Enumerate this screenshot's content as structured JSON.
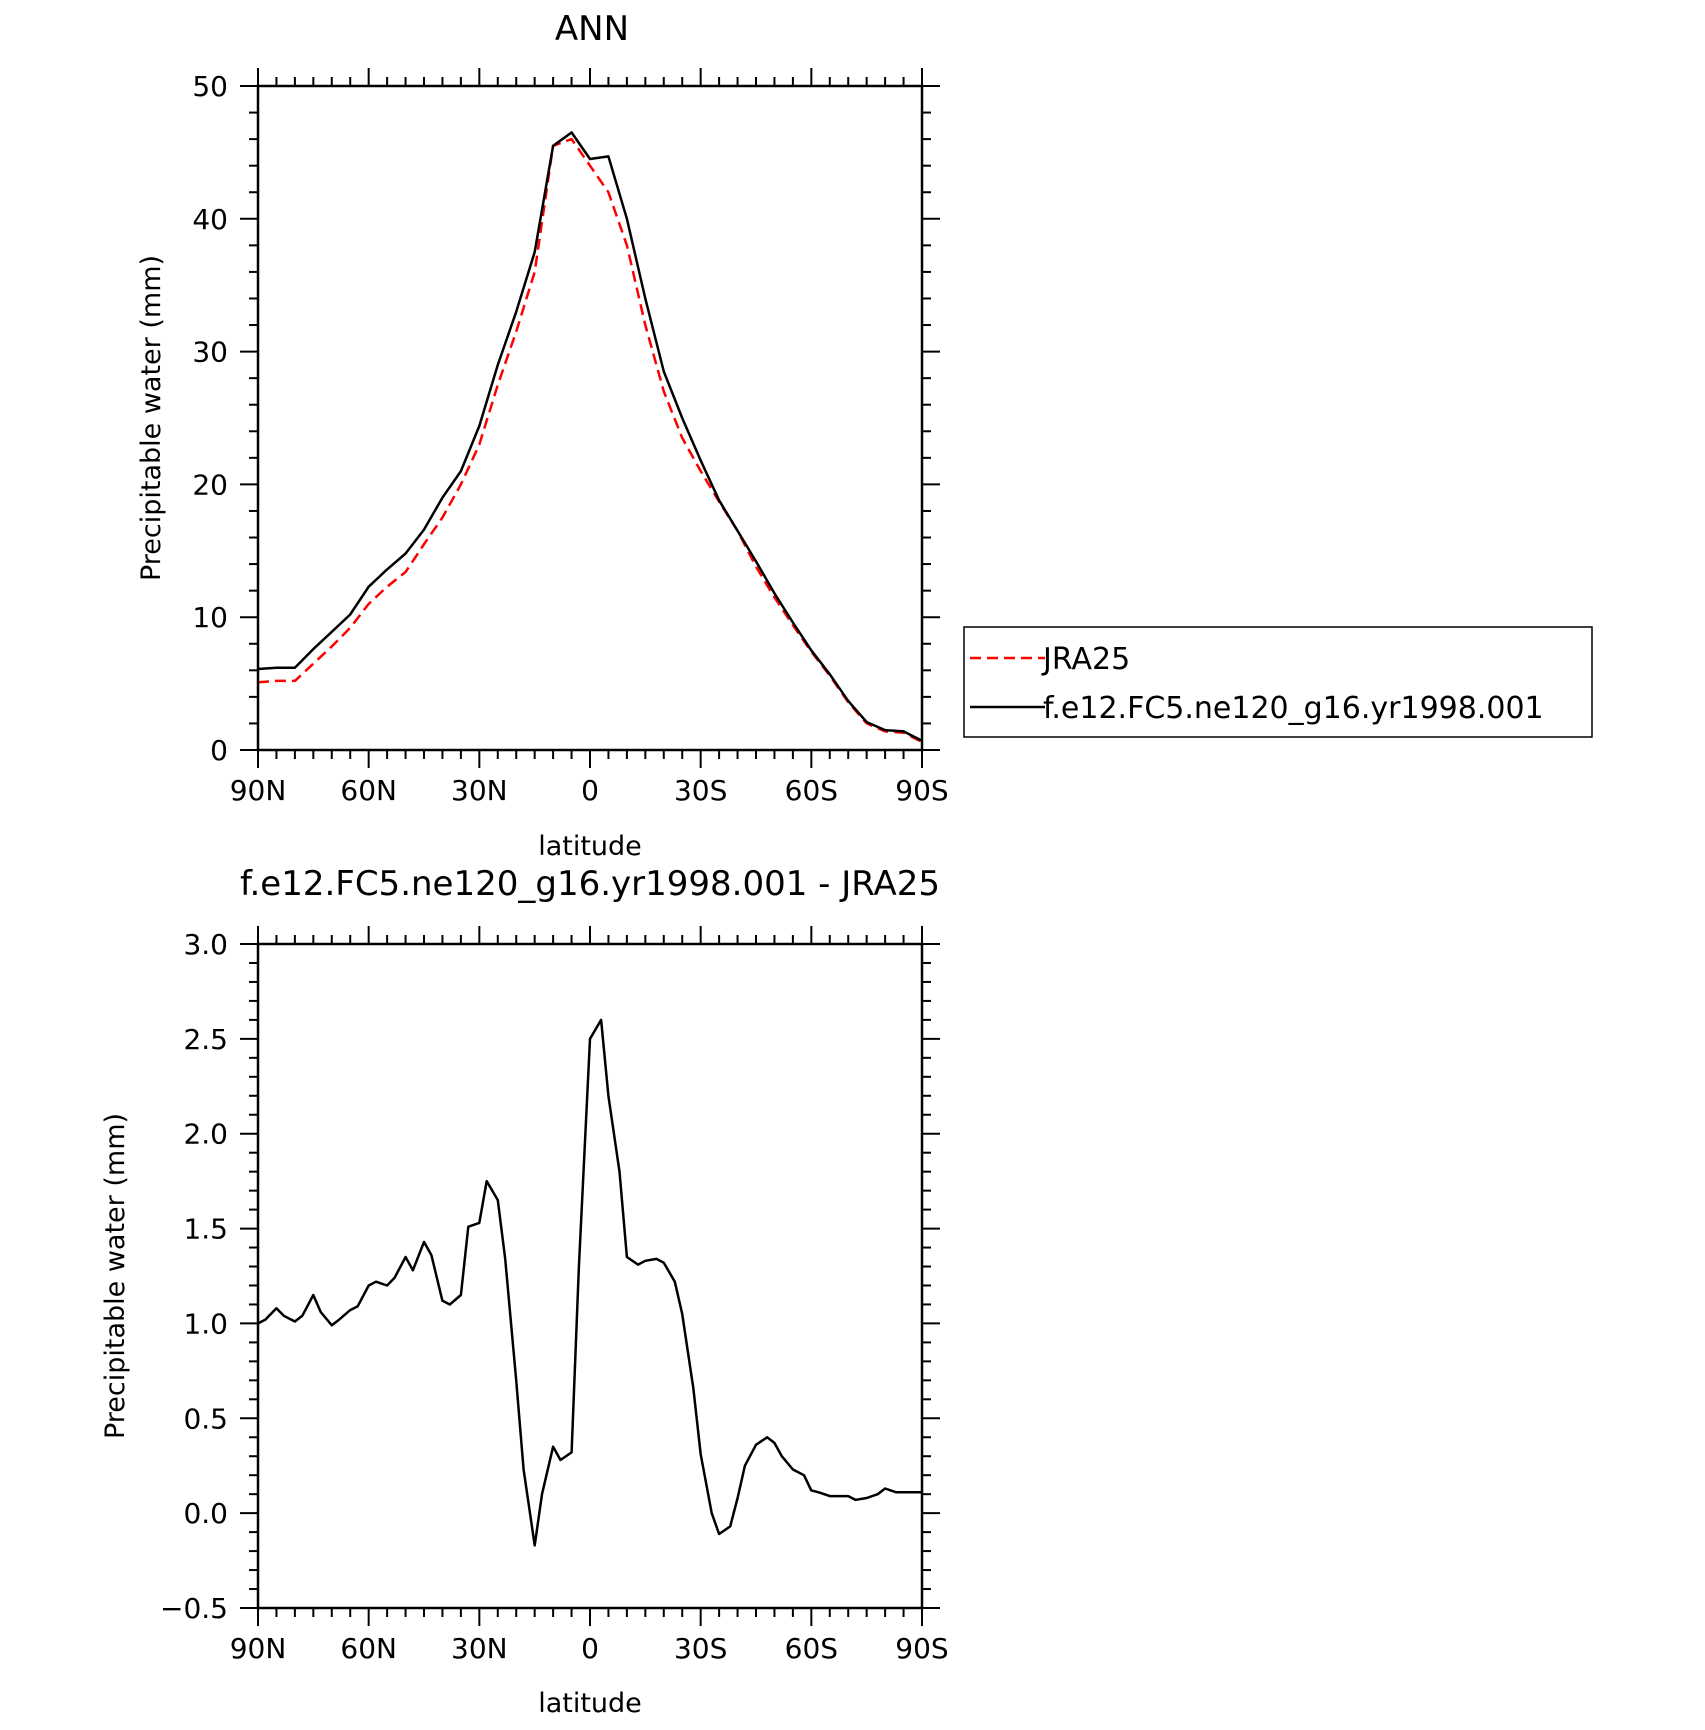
{
  "chart_data": [
    {
      "type": "line",
      "title": "ANN",
      "xlabel": "latitude",
      "ylabel": "Precipitable water (mm)",
      "xlim": [
        90,
        -90
      ],
      "ylim": [
        0,
        50
      ],
      "x_ticks": [
        90,
        60,
        30,
        0,
        -30,
        -60,
        -90
      ],
      "x_tick_labels": [
        "90N",
        "60N",
        "30N",
        "0",
        "30S",
        "60S",
        "90S"
      ],
      "y_ticks": [
        0,
        10,
        20,
        30,
        40,
        50
      ],
      "y_tick_labels": [
        "0",
        "10",
        "20",
        "30",
        "40",
        "50"
      ],
      "grid": false,
      "legend_position": "right",
      "series": [
        {
          "name": "JRA25",
          "color": "#ff0000",
          "style": "dashed",
          "x": [
            90,
            85,
            80,
            75,
            70,
            65,
            60,
            55,
            50,
            45,
            40,
            35,
            30,
            25,
            20,
            15,
            10,
            5,
            0,
            -5,
            -10,
            -15,
            -20,
            -25,
            -30,
            -35,
            -40,
            -45,
            -50,
            -55,
            -60,
            -65,
            -70,
            -75,
            -80,
            -85,
            -90
          ],
          "y": [
            5.1,
            5.2,
            5.2,
            6.5,
            7.8,
            9.2,
            11.0,
            12.3,
            13.4,
            15.5,
            17.5,
            20.0,
            23.0,
            27.5,
            31.5,
            36.0,
            45.5,
            46.0,
            44.0,
            42.0,
            38.0,
            32.0,
            27.0,
            23.5,
            21.0,
            18.7,
            16.5,
            13.8,
            11.5,
            9.4,
            7.4,
            5.6,
            3.6,
            2.0,
            1.4,
            1.3,
            0.6
          ]
        },
        {
          "name": "f.e12.FC5.ne120_g16.yr1998.001",
          "color": "#000000",
          "style": "solid",
          "x": [
            90,
            85,
            80,
            75,
            70,
            65,
            60,
            55,
            50,
            45,
            40,
            35,
            30,
            25,
            20,
            15,
            10,
            5,
            0,
            -5,
            -10,
            -15,
            -20,
            -25,
            -30,
            -35,
            -40,
            -45,
            -50,
            -55,
            -60,
            -65,
            -70,
            -75,
            -80,
            -85,
            -90
          ],
          "y": [
            6.1,
            6.2,
            6.2,
            7.6,
            8.9,
            10.2,
            12.3,
            13.6,
            14.8,
            16.6,
            19.0,
            21.0,
            24.4,
            29.0,
            33.0,
            37.5,
            45.5,
            46.5,
            44.5,
            44.7,
            40.0,
            34.0,
            28.5,
            25.0,
            21.8,
            18.8,
            16.5,
            14.2,
            11.8,
            9.6,
            7.5,
            5.7,
            3.7,
            2.1,
            1.5,
            1.4,
            0.7
          ]
        }
      ]
    },
    {
      "type": "line",
      "title": "f.e12.FC5.ne120_g16.yr1998.001 - JRA25",
      "xlabel": "latitude",
      "ylabel": "Precipitable water (mm)",
      "xlim": [
        90,
        -90
      ],
      "ylim": [
        -0.5,
        3.0
      ],
      "x_ticks": [
        90,
        60,
        30,
        0,
        -30,
        -60,
        -90
      ],
      "x_tick_labels": [
        "90N",
        "60N",
        "30N",
        "0",
        "30S",
        "60S",
        "90S"
      ],
      "y_ticks": [
        -0.5,
        0.0,
        0.5,
        1.0,
        1.5,
        2.0,
        2.5,
        3.0
      ],
      "y_tick_labels": [
        "−0.5",
        "0.0",
        "0.5",
        "1.0",
        "1.5",
        "2.0",
        "2.5",
        "3.0"
      ],
      "grid": false,
      "series": [
        {
          "color": "#000000",
          "style": "solid",
          "x": [
            90,
            88,
            85,
            83,
            80,
            78,
            75,
            73,
            70,
            68,
            65,
            63,
            60,
            58,
            55,
            53,
            50,
            48,
            45,
            43,
            40,
            38,
            35,
            33,
            30,
            28,
            25,
            23,
            20,
            18,
            15,
            13,
            10,
            8,
            5,
            3,
            0,
            -3,
            -5,
            -8,
            -10,
            -13,
            -15,
            -18,
            -20,
            -23,
            -25,
            -28,
            -30,
            -33,
            -35,
            -38,
            -40,
            -42,
            -45,
            -48,
            -50,
            -52,
            -55,
            -58,
            -60,
            -62,
            -65,
            -68,
            -70,
            -72,
            -75,
            -78,
            -80,
            -83,
            -85,
            -88,
            -90
          ],
          "y": [
            1.0,
            1.02,
            1.08,
            1.04,
            1.01,
            1.04,
            1.15,
            1.06,
            0.99,
            1.02,
            1.07,
            1.09,
            1.2,
            1.22,
            1.2,
            1.24,
            1.35,
            1.28,
            1.43,
            1.36,
            1.12,
            1.1,
            1.15,
            1.51,
            1.53,
            1.75,
            1.65,
            1.34,
            0.7,
            0.23,
            -0.17,
            0.1,
            0.35,
            0.28,
            0.32,
            1.3,
            2.5,
            2.6,
            2.2,
            1.8,
            1.35,
            1.31,
            1.33,
            1.34,
            1.32,
            1.22,
            1.05,
            0.66,
            0.31,
            0.0,
            -0.11,
            -0.07,
            0.08,
            0.25,
            0.36,
            0.4,
            0.37,
            0.3,
            0.23,
            0.2,
            0.12,
            0.11,
            0.09,
            0.09,
            0.09,
            0.07,
            0.08,
            0.1,
            0.13,
            0.11,
            0.11,
            0.11,
            0.11
          ]
        }
      ]
    }
  ]
}
